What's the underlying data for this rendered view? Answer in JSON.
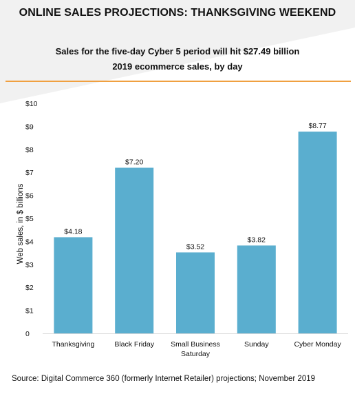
{
  "header": {
    "title": "ONLINE SALES PROJECTIONS: THANKSGIVING WEEKEND",
    "subtitle_line1": "Sales for the five-day Cyber 5 period will hit $27.49 billion",
    "subtitle_line2": "2019 ecommerce sales, by day"
  },
  "footer": {
    "source": "Source: Digital Commerce 360 (formerly Internet Retailer) projections; November 2019"
  },
  "colors": {
    "bar": "#5aaecf",
    "accent_rule": "#f0a040",
    "background_shade": "#f1f1f1",
    "text": "#111111"
  },
  "chart_data": {
    "type": "bar",
    "categories": [
      "Thanksgiving",
      "Black Friday",
      "Small Business Saturday",
      "Sunday",
      "Cyber Monday"
    ],
    "category_lines": [
      [
        "Thanksgiving"
      ],
      [
        "Black Friday"
      ],
      [
        "Small Business",
        "Saturday"
      ],
      [
        "Sunday"
      ],
      [
        "Cyber Monday"
      ]
    ],
    "values": [
      4.18,
      7.2,
      3.52,
      3.82,
      8.77
    ],
    "value_labels": [
      "$4.18",
      "$7.20",
      "$3.52",
      "$3.82",
      "$8.77"
    ],
    "ylabel": "Web sales, in $ billions",
    "ylim": [
      0,
      10
    ],
    "y_ticks": [
      0,
      1,
      2,
      3,
      4,
      5,
      6,
      7,
      8,
      9,
      10
    ],
    "y_tick_labels": [
      "0",
      "$1",
      "$2",
      "$3",
      "$4",
      "$5",
      "$6",
      "$7",
      "$8",
      "$9",
      "$10"
    ],
    "grid": false,
    "legend": "none"
  }
}
